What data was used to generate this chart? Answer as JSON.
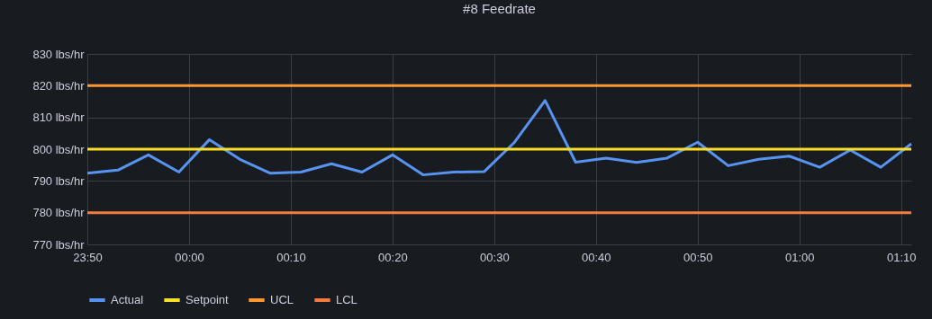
{
  "chart_data": {
    "type": "line",
    "title": "#8 Feedrate",
    "x": [
      "--01-01T23:50",
      "--01-01T23:53",
      "--01-01T23:56",
      "--01-01T23:59",
      "--01-02T00:02",
      "--01-02T00:05",
      "--01-02T00:08",
      "--01-02T00:11",
      "--01-02T00:14",
      "--01-02T00:17",
      "--01-02T00:20",
      "--01-02T00:23",
      "--01-02T00:26",
      "--01-02T00:29",
      "--01-02T00:32",
      "--01-02T00:35",
      "--01-02T00:38",
      "--01-02T00:41",
      "--01-02T00:44",
      "--01-02T00:47",
      "--01-02T00:50",
      "--01-02T00:53",
      "--01-02T00:56",
      "--01-02T00:59",
      "--01-02T01:02",
      "--01-02T01:05",
      "--01-02T01:08",
      "--01-02T01:11"
    ],
    "series": [
      {
        "name": "Actual",
        "color": "#5794f2",
        "values": [
          792.4,
          793.4,
          798.2,
          792.8,
          803,
          796.8,
          792.4,
          792.8,
          795.4,
          792.8,
          798.2,
          791.9,
          792.8,
          792.9,
          802.2,
          815.3,
          795.9,
          797.2,
          795.8,
          797.2,
          802.2,
          794.8,
          796.8,
          797.8,
          794.3,
          799.7,
          794.3,
          801.7
        ]
      },
      {
        "name": "Setpoint",
        "color": "#fade2a",
        "x": [
          "--01-01T23:50",
          "--01-02T01:11"
        ],
        "values": [
          800,
          800
        ]
      },
      {
        "name": "UCL",
        "color": "#ff9830",
        "x": [
          "--01-01T23:50",
          "--01-02T01:11"
        ],
        "values": [
          820,
          820
        ]
      },
      {
        "name": "LCL",
        "color": "#f47c3c",
        "x": [
          "--01-01T23:50",
          "--01-02T01:11"
        ],
        "values": [
          780,
          780
        ]
      }
    ],
    "xlim": [
      "--01-01T23:50",
      "--01-02T01:11"
    ],
    "xticks": [
      {
        "value": "--01-01T23:50",
        "label": "23:50"
      },
      {
        "value": "--01-02T00:00",
        "label": "00:00"
      },
      {
        "value": "--01-02T00:10",
        "label": "00:10"
      },
      {
        "value": "--01-02T00:20",
        "label": "00:20"
      },
      {
        "value": "--01-02T00:30",
        "label": "00:30"
      },
      {
        "value": "--01-02T00:40",
        "label": "00:40"
      },
      {
        "value": "--01-02T00:50",
        "label": "00:50"
      },
      {
        "value": "--01-02T01:00",
        "label": "01:00"
      },
      {
        "value": "--01-02T01:10",
        "label": "01:10"
      }
    ],
    "ylim": [
      770,
      830
    ],
    "yticks": [
      {
        "value": 770,
        "label": "770 lbs/hr"
      },
      {
        "value": 780,
        "label": "780 lbs/hr"
      },
      {
        "value": 790,
        "label": "790 lbs/hr"
      },
      {
        "value": 800,
        "label": "800 lbs/hr"
      },
      {
        "value": 810,
        "label": "810 lbs/hr"
      },
      {
        "value": 820,
        "label": "820 lbs/hr"
      },
      {
        "value": 830,
        "label": "830 lbs/hr"
      }
    ],
    "grid": true,
    "legend": "bottom"
  }
}
